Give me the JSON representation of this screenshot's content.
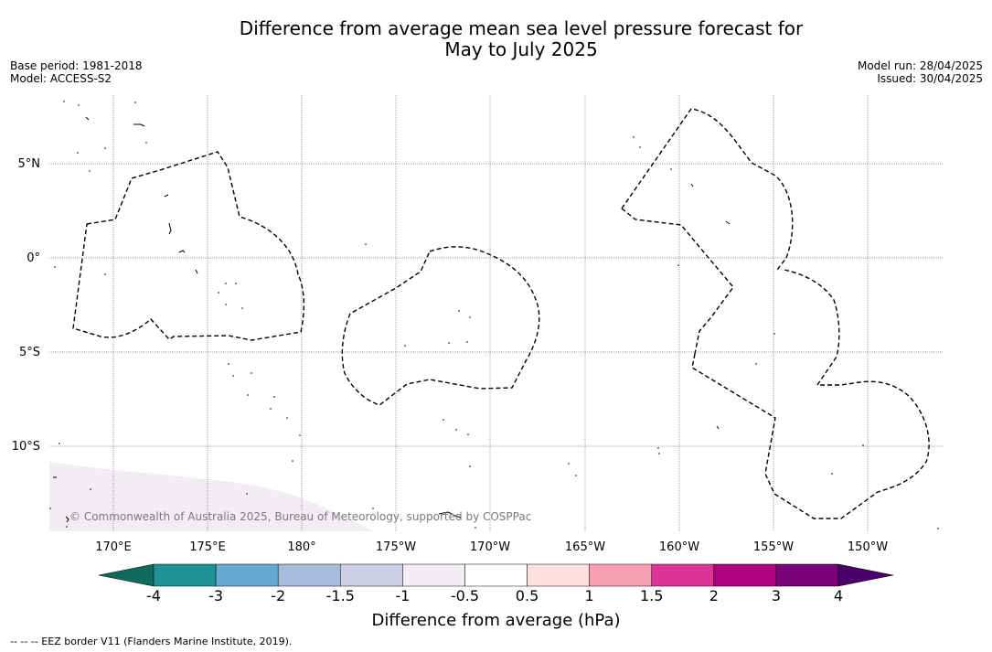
{
  "title_line1": "Difference from average mean sea level pressure forecast for",
  "title_line2": "May to July 2025",
  "base_period": "Base period: 1981-2018",
  "model": "Model: ACCESS-S2",
  "model_run": "Model run: 28/04/2025",
  "issued": "Issued: 30/04/2025",
  "copyright": "© Commonwealth of Australia 2025, Bureau of Meteorology, supported by COSPPac",
  "footnote": "--  --  -- EEZ border V11 (Flanders Marine Institute, 2019).",
  "colorbar": {
    "title": "Difference from average (hPa)",
    "tick_labels": [
      "-4",
      "-3",
      "-2",
      "-1.5",
      "-1",
      "-0.5",
      "0.5",
      "1",
      "1.5",
      "2",
      "3",
      "4"
    ],
    "colors": [
      "#0f6b5c",
      "#1f9297",
      "#66a9d1",
      "#a7bcdc",
      "#cdd0e5",
      "#f2ecf3",
      "#ffffff",
      "#fde0dd",
      "#f8a0b3",
      "#dd3497",
      "#ae017e",
      "#7a0177",
      "#4a006a"
    ]
  },
  "map": {
    "lat_labels": [
      "5°N",
      "0°",
      "5°S",
      "10°S"
    ],
    "lon_labels": [
      "170°E",
      "175°E",
      "180°",
      "175°W",
      "170°W",
      "165°W",
      "160°W",
      "155°W",
      "150°W"
    ],
    "shaded_value_class": "-0.5 to -1"
  }
}
